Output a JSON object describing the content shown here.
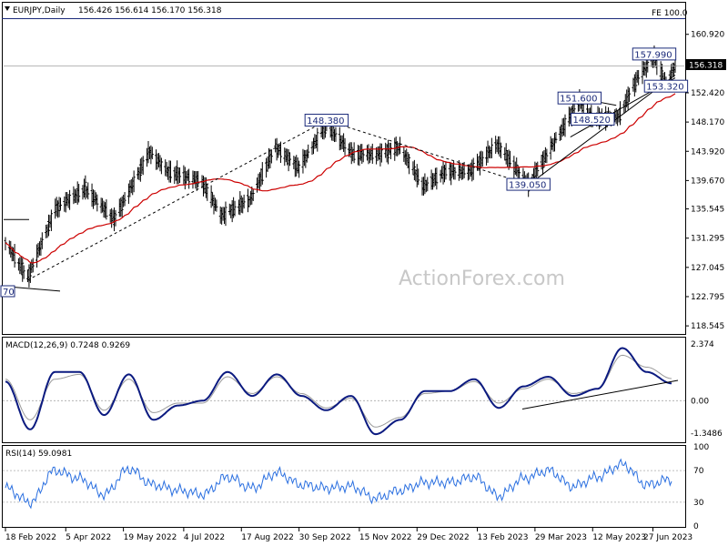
{
  "header": {
    "symbol": "EURJPY,Daily",
    "ohlc": "156.426 156.614 156.170 156.318",
    "macd_title": "MACD(12,26,9) 0.7248 0.9269",
    "rsi_title": "RSI(14) 59.0981",
    "fe_label": "FE 100.0",
    "watermark": "ActionForex.com",
    "current_price": "156.318",
    "left_cut_label": "70"
  },
  "colors": {
    "candle": "#000000",
    "ma": "#cc0000",
    "macd": "#0b1a80",
    "signal": "#9a9a9a",
    "rsi": "#2a6fe0",
    "annotation": "#1b2a7a"
  },
  "chart_data": [
    {
      "type": "candlestick",
      "title": "EURJPY,Daily",
      "ylim": [
        117.5,
        163.0
      ],
      "y_ticks": [
        "160.920",
        "156.318",
        "152.420",
        "148.170",
        "143.920",
        "139.670",
        "135.545",
        "131.295",
        "127.045",
        "122.795",
        "118.545"
      ],
      "x_ticks": [
        "18 Feb 2022",
        "5 Apr 2022",
        "19 May 2022",
        "4 Jul 2022",
        "17 Aug 2022",
        "30 Sep 2022",
        "15 Nov 2022",
        "29 Dec 2022",
        "13 Feb 2023",
        "29 Mar 2023",
        "12 May 2023",
        "27 Jun 2023"
      ],
      "annotations": [
        {
          "text": "157.990",
          "x": "2023-06-28",
          "y": 157.99
        },
        {
          "text": "153.320",
          "x": "2023-07-07",
          "y": 153.32
        },
        {
          "text": "151.600",
          "x": "2023-05-02",
          "y": 151.6
        },
        {
          "text": "148.520",
          "x": "2023-05-12",
          "y": 148.52
        },
        {
          "text": "148.380",
          "x": "2022-10-21",
          "y": 148.38
        },
        {
          "text": "139.050",
          "x": "2023-03-24",
          "y": 139.05
        }
      ],
      "last_close": 156.318,
      "series_close": [
        {
          "date": "2022-02-18",
          "close": 130.8
        },
        {
          "date": "2022-03-07",
          "close": 125.5
        },
        {
          "date": "2022-03-28",
          "close": 135.5
        },
        {
          "date": "2022-04-20",
          "close": 138.5
        },
        {
          "date": "2022-05-12",
          "close": 134.0
        },
        {
          "date": "2022-06-08",
          "close": 143.8
        },
        {
          "date": "2022-06-22",
          "close": 141.0
        },
        {
          "date": "2022-07-18",
          "close": 139.5
        },
        {
          "date": "2022-08-02",
          "close": 134.5
        },
        {
          "date": "2022-08-24",
          "close": 137.0
        },
        {
          "date": "2022-09-12",
          "close": 144.5
        },
        {
          "date": "2022-09-30",
          "close": 141.5
        },
        {
          "date": "2022-10-21",
          "close": 147.8
        },
        {
          "date": "2022-11-10",
          "close": 143.5
        },
        {
          "date": "2022-11-30",
          "close": 143.5
        },
        {
          "date": "2022-12-16",
          "close": 144.5
        },
        {
          "date": "2023-01-03",
          "close": 138.8
        },
        {
          "date": "2023-01-20",
          "close": 141.0
        },
        {
          "date": "2023-02-08",
          "close": 141.0
        },
        {
          "date": "2023-02-28",
          "close": 145.0
        },
        {
          "date": "2023-03-24",
          "close": 139.1
        },
        {
          "date": "2023-04-12",
          "close": 145.0
        },
        {
          "date": "2023-05-02",
          "close": 151.2
        },
        {
          "date": "2023-05-12",
          "close": 148.6
        },
        {
          "date": "2023-06-01",
          "close": 149.0
        },
        {
          "date": "2023-06-15",
          "close": 154.5
        },
        {
          "date": "2023-06-28",
          "close": 157.6
        },
        {
          "date": "2023-07-07",
          "close": 153.6
        },
        {
          "date": "2023-07-14",
          "close": 156.318
        }
      ]
    },
    {
      "type": "line",
      "title": "MACD(12,26,9) 0.7248 0.9269",
      "ylim": [
        -1.7,
        2.6
      ],
      "y_ticks": [
        "2.374",
        "0.00",
        "-1.3486"
      ],
      "series": [
        {
          "name": "MACD",
          "values": [
            0.8,
            -1.2,
            1.2,
            1.2,
            -0.6,
            1.1,
            -0.8,
            -0.2,
            0.0,
            1.2,
            0.2,
            1.1,
            0.2,
            -0.4,
            0.2,
            -1.4,
            -0.8,
            0.4,
            0.4,
            0.9,
            -0.3,
            0.6,
            1.0,
            0.2,
            0.5,
            2.2,
            1.2,
            0.7248
          ]
        },
        {
          "name": "Signal",
          "values": [
            0.9,
            -0.8,
            0.9,
            1.1,
            -0.4,
            0.9,
            -0.5,
            -0.1,
            -0.1,
            1.0,
            0.3,
            1.0,
            0.3,
            -0.3,
            0.1,
            -1.1,
            -0.7,
            0.3,
            0.4,
            0.8,
            -0.1,
            0.5,
            0.9,
            0.3,
            0.5,
            1.9,
            1.4,
            0.9269
          ]
        }
      ]
    },
    {
      "type": "line",
      "title": "RSI(14) 59.0981",
      "ylim": [
        0,
        100
      ],
      "y_ticks": [
        "100",
        "70",
        "30",
        "0"
      ],
      "series": [
        {
          "name": "RSI",
          "values": [
            48,
            30,
            70,
            60,
            40,
            72,
            52,
            45,
            40,
            62,
            48,
            67,
            52,
            48,
            50,
            35,
            45,
            55,
            55,
            62,
            38,
            60,
            70,
            50,
            62,
            78,
            52,
            59.0981
          ]
        }
      ]
    }
  ]
}
